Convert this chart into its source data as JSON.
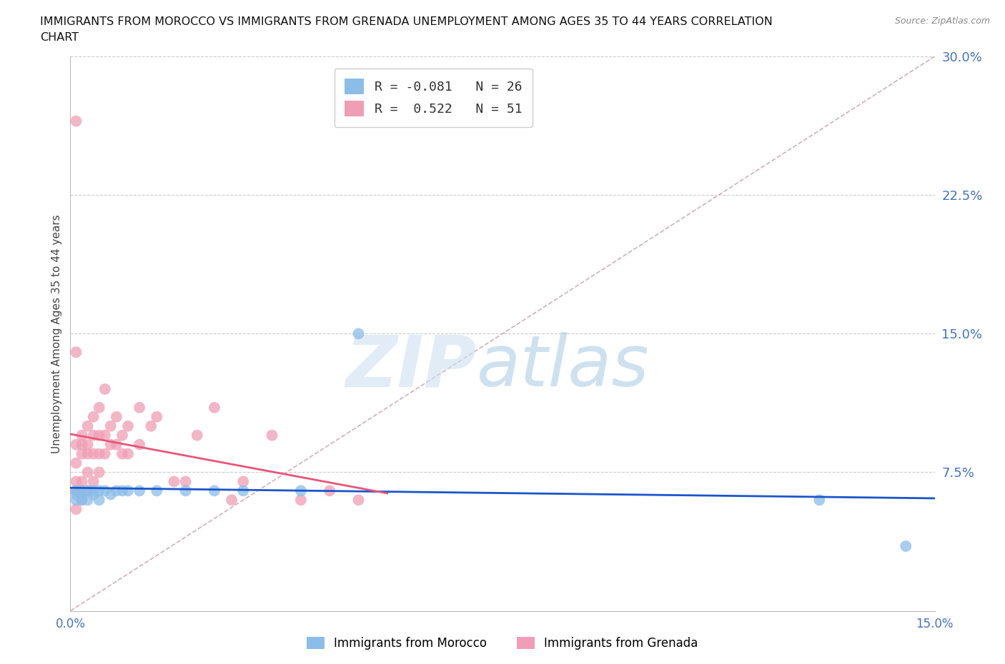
{
  "title_line1": "IMMIGRANTS FROM MOROCCO VS IMMIGRANTS FROM GRENADA UNEMPLOYMENT AMONG AGES 35 TO 44 YEARS CORRELATION",
  "title_line2": "CHART",
  "source": "Source: ZipAtlas.com",
  "ylabel": "Unemployment Among Ages 35 to 44 years",
  "xlim": [
    0.0,
    0.15
  ],
  "ylim": [
    0.0,
    0.3
  ],
  "yticks": [
    0.075,
    0.15,
    0.225,
    0.3
  ],
  "ytick_labels": [
    "7.5%",
    "15.0%",
    "22.5%",
    "30.0%"
  ],
  "xticks": [
    0.0,
    0.025,
    0.05,
    0.075,
    0.1,
    0.125,
    0.15
  ],
  "xtick_labels": [
    "0.0%",
    "",
    "",
    "",
    "",
    "",
    "15.0%"
  ],
  "morocco_color": "#8bbde8",
  "grenada_color": "#f09eb5",
  "morocco_line_color": "#1a56cc",
  "grenada_line_color": "#e8557a",
  "morocco_label": "Immigrants from Morocco",
  "grenada_label": "Immigrants from Grenada",
  "morocco_R": -0.081,
  "morocco_N": 26,
  "grenada_R": 0.522,
  "grenada_N": 51,
  "background_color": "#ffffff",
  "grid_color": "#cccccc",
  "diag_color": "#d0b0b8",
  "axis_color": "#4472c4",
  "morocco_x": [
    0.001,
    0.001,
    0.001,
    0.002,
    0.002,
    0.002,
    0.003,
    0.003,
    0.004,
    0.004,
    0.005,
    0.005,
    0.006,
    0.007,
    0.008,
    0.009,
    0.01,
    0.012,
    0.015,
    0.02,
    0.025,
    0.03,
    0.04,
    0.05,
    0.13,
    0.145
  ],
  "morocco_y": [
    0.06,
    0.063,
    0.065,
    0.06,
    0.062,
    0.065,
    0.06,
    0.065,
    0.063,
    0.065,
    0.06,
    0.065,
    0.065,
    0.063,
    0.065,
    0.065,
    0.065,
    0.065,
    0.065,
    0.065,
    0.065,
    0.065,
    0.065,
    0.15,
    0.06,
    0.035
  ],
  "grenada_x": [
    0.001,
    0.001,
    0.001,
    0.001,
    0.001,
    0.002,
    0.002,
    0.002,
    0.002,
    0.002,
    0.002,
    0.003,
    0.003,
    0.003,
    0.003,
    0.003,
    0.004,
    0.004,
    0.004,
    0.004,
    0.005,
    0.005,
    0.005,
    0.005,
    0.006,
    0.006,
    0.006,
    0.007,
    0.007,
    0.008,
    0.008,
    0.009,
    0.009,
    0.01,
    0.01,
    0.012,
    0.012,
    0.014,
    0.015,
    0.018,
    0.02,
    0.022,
    0.025,
    0.028,
    0.03,
    0.035,
    0.04,
    0.045,
    0.05,
    0.001,
    0.001
  ],
  "grenada_y": [
    0.055,
    0.065,
    0.07,
    0.08,
    0.09,
    0.06,
    0.065,
    0.07,
    0.085,
    0.09,
    0.095,
    0.065,
    0.075,
    0.085,
    0.09,
    0.1,
    0.07,
    0.085,
    0.095,
    0.105,
    0.075,
    0.085,
    0.095,
    0.11,
    0.085,
    0.095,
    0.12,
    0.09,
    0.1,
    0.09,
    0.105,
    0.085,
    0.095,
    0.085,
    0.1,
    0.09,
    0.11,
    0.1,
    0.105,
    0.07,
    0.07,
    0.095,
    0.11,
    0.06,
    0.07,
    0.095,
    0.06,
    0.065,
    0.06,
    0.265,
    0.14
  ]
}
